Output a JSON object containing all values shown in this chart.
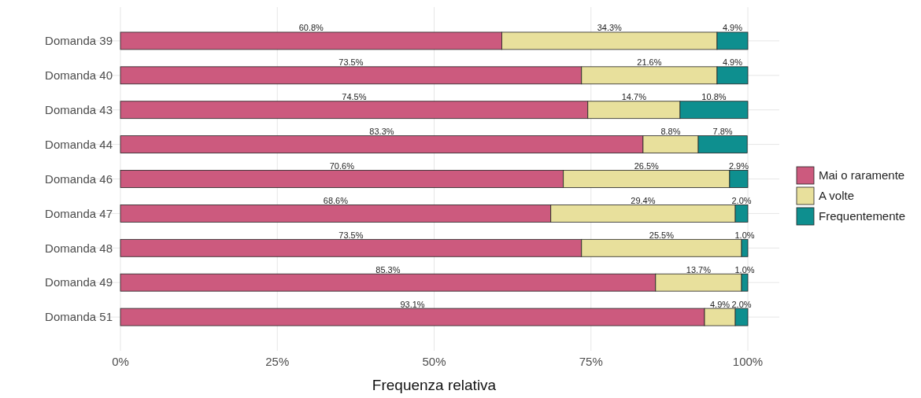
{
  "chart_data": {
    "type": "bar",
    "orientation": "horizontal",
    "stacked": true,
    "xlabel": "Frequenza relativa",
    "categories": [
      "Domanda 39",
      "Domanda 40",
      "Domanda 43",
      "Domanda 44",
      "Domanda 46",
      "Domanda 47",
      "Domanda 48",
      "Domanda 49",
      "Domanda 51"
    ],
    "series": [
      {
        "name": "Mai o raramente",
        "color": "#cc5a7e",
        "values": [
          60.8,
          73.5,
          74.5,
          83.3,
          70.6,
          68.6,
          73.5,
          85.3,
          93.1
        ],
        "value_labels": [
          "60.8%",
          "73.5%",
          "74.5%",
          "83.3%",
          "70.6%",
          "68.6%",
          "73.5%",
          "85.3%",
          "93.1%"
        ]
      },
      {
        "name": "A volte",
        "color": "#e8e09c",
        "values": [
          34.3,
          21.6,
          14.7,
          8.8,
          26.5,
          29.4,
          25.5,
          13.7,
          4.9
        ],
        "value_labels": [
          "34.3%",
          "21.6%",
          "14.7%",
          "8.8%",
          "26.5%",
          "29.4%",
          "25.5%",
          "13.7%",
          "4.9%"
        ]
      },
      {
        "name": "Frequentemente",
        "color": "#0e8f8f",
        "values": [
          4.9,
          4.9,
          10.8,
          7.8,
          2.9,
          2.0,
          1.0,
          1.0,
          2.0
        ],
        "value_labels": [
          "4.9%",
          "4.9%",
          "10.8%",
          "7.8%",
          "2.9%",
          "2.0%",
          "1.0%",
          "1.0%",
          "2.0%"
        ]
      }
    ],
    "xlim": [
      0,
      100
    ],
    "xticks": [
      {
        "value": 0,
        "label": "0%"
      },
      {
        "value": 25,
        "label": "25%"
      },
      {
        "value": 50,
        "label": "50%"
      },
      {
        "value": 75,
        "label": "75%"
      },
      {
        "value": 100,
        "label": "100%"
      }
    ],
    "grid": true,
    "legend": "right"
  }
}
